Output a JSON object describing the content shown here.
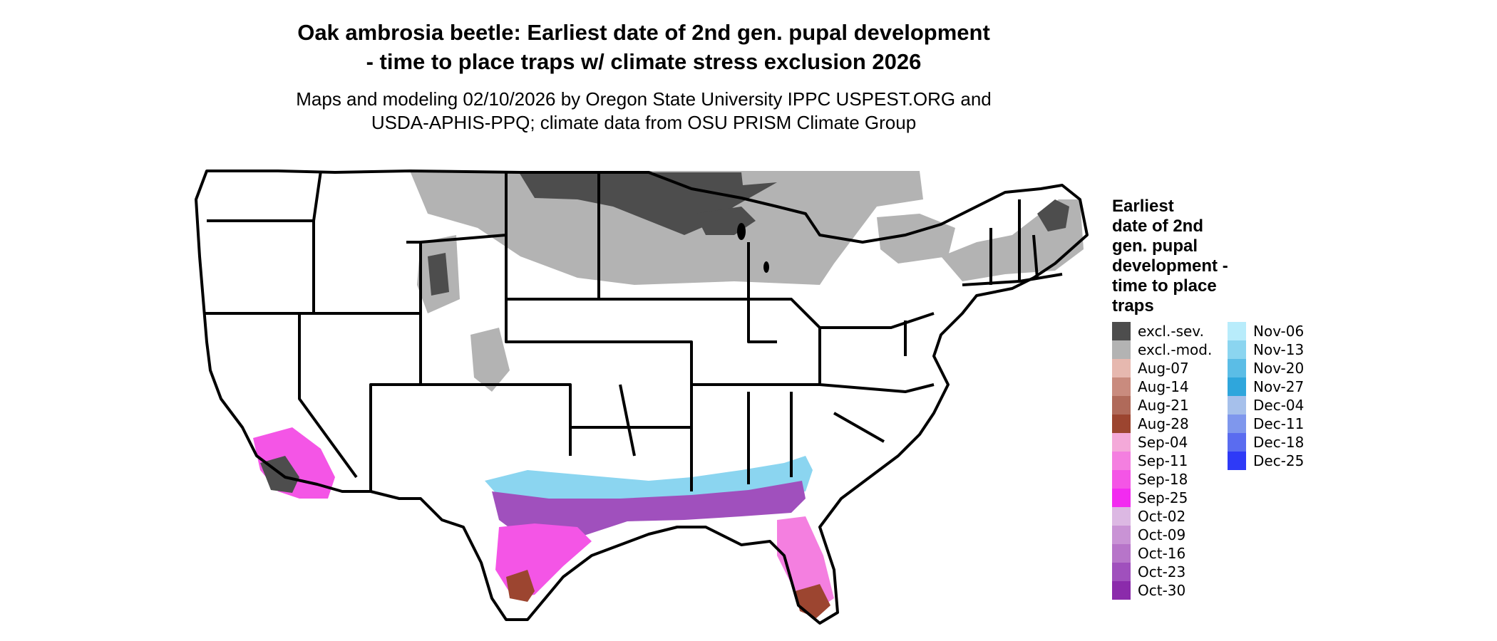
{
  "header": {
    "title_line1": "Oak ambrosia beetle: Earliest date of 2nd gen. pupal development",
    "title_line2": "- time to place traps w/ climate stress exclusion 2026",
    "subtitle_line1": "Maps and modeling 02/10/2026 by Oregon State University IPPC USPEST.ORG and",
    "subtitle_line2": "USDA-APHIS-PPQ; climate data from OSU PRISM Climate Group"
  },
  "legend": {
    "title_lines": [
      "Earliest",
      "date of 2nd",
      "gen. pupal",
      "development -",
      "time to place",
      "traps"
    ],
    "columns": [
      [
        {
          "label": "excl.-sev.",
          "color": "#4d4d4d"
        },
        {
          "label": "excl.-mod.",
          "color": "#b3b3b3"
        },
        {
          "label": "Aug-07",
          "color": "#e6b8af"
        },
        {
          "label": "Aug-14",
          "color": "#c98b7e"
        },
        {
          "label": "Aug-21",
          "color": "#b06a5a"
        },
        {
          "label": "Aug-28",
          "color": "#9c4530"
        },
        {
          "label": "Sep-04",
          "color": "#f4a9d9"
        },
        {
          "label": "Sep-11",
          "color": "#f47fe0"
        },
        {
          "label": "Sep-18",
          "color": "#f455e6"
        },
        {
          "label": "Sep-25",
          "color": "#f22bf0"
        },
        {
          "label": "Oct-02",
          "color": "#dcb8e3"
        },
        {
          "label": "Oct-09",
          "color": "#c993d5"
        },
        {
          "label": "Oct-16",
          "color": "#b775c9"
        },
        {
          "label": "Oct-23",
          "color": "#a050bd"
        },
        {
          "label": "Oct-30",
          "color": "#8b2bab"
        }
      ],
      [
        {
          "label": "Nov-06",
          "color": "#b8ecfb"
        },
        {
          "label": "Nov-13",
          "color": "#8bd5f0"
        },
        {
          "label": "Nov-20",
          "color": "#5bbde6"
        },
        {
          "label": "Nov-27",
          "color": "#2fa6dc"
        },
        {
          "label": "Dec-04",
          "color": "#a6c0eb"
        },
        {
          "label": "Dec-11",
          "color": "#7f97ed"
        },
        {
          "label": "Dec-18",
          "color": "#5a6cf0"
        },
        {
          "label": "Dec-25",
          "color": "#2e3af7"
        }
      ]
    ]
  }
}
